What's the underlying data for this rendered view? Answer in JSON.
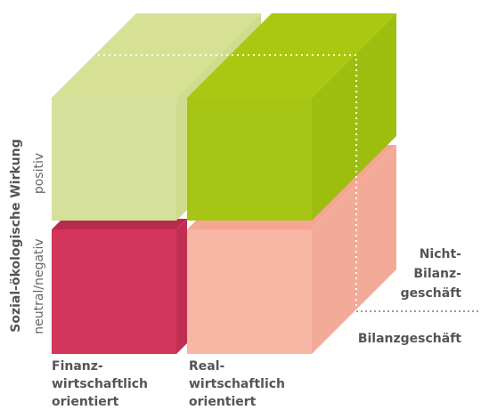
{
  "axis_label": "Sozial-ökologische Wirkung",
  "rows": [
    "positiv",
    "neutral/negativ"
  ],
  "columns": [
    [
      "Finanz-",
      "wirtschaftlich",
      "orientiert"
    ],
    [
      "Real-",
      "wirtschaftlich",
      "orientiert"
    ]
  ],
  "depth": [
    [
      "Nicht-",
      "Bilanz-",
      "geschäft"
    ],
    [
      "Bilanzgeschäft"
    ]
  ]
}
